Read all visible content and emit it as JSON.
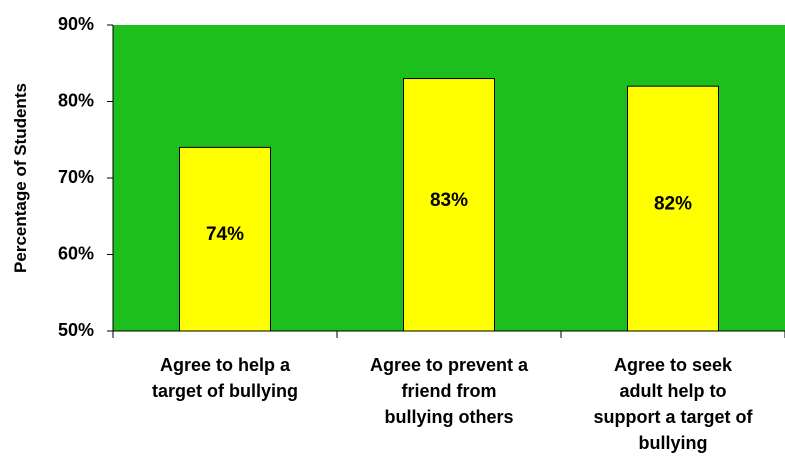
{
  "chart_data": {
    "type": "bar",
    "title": "",
    "xlabel": "",
    "ylabel": "Percentage of Students",
    "ylim": [
      50,
      90
    ],
    "yticks": [
      50,
      60,
      70,
      80,
      90
    ],
    "ytick_labels": [
      "50%",
      "60%",
      "70%",
      "80%",
      "90%"
    ],
    "categories": [
      [
        "Agree to help a",
        "target of bullying"
      ],
      [
        "Agree to prevent a",
        "friend from",
        "bullying others"
      ],
      [
        "Agree to seek",
        "adult help to",
        "support a target of",
        "bullying"
      ]
    ],
    "values": [
      74,
      83,
      82
    ],
    "value_labels": [
      "74%",
      "83%",
      "82%"
    ],
    "grid": false,
    "legend": "none",
    "colors": {
      "plot_background": "#1cbf1c",
      "bar_fill": "#ffff00",
      "bar_stroke": "#000000"
    }
  }
}
